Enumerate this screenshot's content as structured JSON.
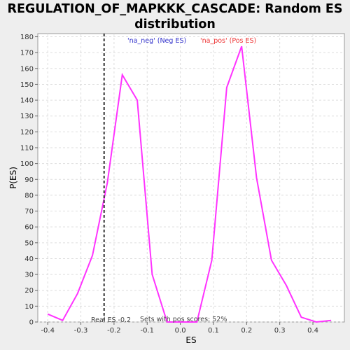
{
  "chart_data": {
    "type": "line",
    "title": "REGULATION_OF_MAPKKK_CASCADE: Random ES distribution",
    "title_lines": [
      "REGULATION_OF_MAPKKK_CASCADE: Random ES",
      "distribution"
    ],
    "xlabel": "ES",
    "ylabel": "P(ES)",
    "xlim": [
      -0.43,
      0.495
    ],
    "ylim": [
      0,
      182
    ],
    "x_ticks": [
      -0.4,
      -0.3,
      -0.2,
      -0.1,
      0.0,
      0.1,
      0.2,
      0.3,
      0.4
    ],
    "x_tick_labels": [
      "-0.4",
      "-0.3",
      "-0.2",
      "-0.1",
      "0.0",
      "0.1",
      "0.2",
      "0.3",
      "0.4"
    ],
    "y_ticks": [
      0,
      10,
      20,
      30,
      40,
      50,
      60,
      70,
      80,
      90,
      100,
      110,
      120,
      130,
      140,
      150,
      160,
      170,
      180
    ],
    "grid": true,
    "series": [
      {
        "color": "#ff33ff",
        "x": [
          -0.4,
          -0.355,
          -0.31,
          -0.265,
          -0.22,
          -0.175,
          -0.13,
          -0.085,
          -0.04,
          0.005,
          0.05,
          0.095,
          0.14,
          0.185,
          0.23,
          0.275,
          0.32,
          0.365,
          0.41,
          0.455
        ],
        "y": [
          5,
          1,
          18,
          42,
          88,
          156,
          140,
          30,
          0,
          0,
          0,
          39,
          148,
          174,
          91,
          39,
          23,
          3,
          0,
          1
        ]
      }
    ],
    "vline": {
      "x": -0.23,
      "style": "dashed",
      "color": "#333333"
    },
    "annotations": {
      "neg_legend": "'na_neg' (Neg ES)",
      "pos_legend": "'na_pos' (Pos ES)",
      "real_es": "Real ES -0.2",
      "pos_scores": "Sets with pos scores: 52%"
    },
    "colors": {
      "neg": "#3333cc",
      "pos": "#ee3333",
      "line": "#ff33ff",
      "grid": "#dddddd"
    }
  }
}
